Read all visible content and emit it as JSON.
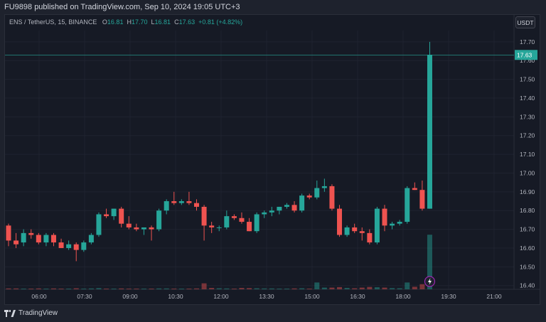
{
  "header": {
    "published": "FU9898 published on TradingView.com, Sep 10, 2024 19:05 UTC+3"
  },
  "legend": {
    "symbol": "ENS / TetherUS, 15, BINANCE",
    "o_label": "O",
    "o_val": "16.81",
    "h_label": "H",
    "h_val": "17.70",
    "l_label": "L",
    "l_val": "16.81",
    "c_label": "C",
    "c_val": "17.63",
    "change": "+0.81 (+4.82%)"
  },
  "currency_button": "USDT",
  "price_tag": "17.63",
  "footer": {
    "brand": "TradingView"
  },
  "colors": {
    "up": "#26a69a",
    "down": "#ef5350",
    "background": "#161a25",
    "text": "#b2b5be"
  },
  "chart_data": {
    "type": "candlestick",
    "y_ticks": [
      "17.70",
      "17.60",
      "17.50",
      "17.40",
      "17.30",
      "17.20",
      "17.10",
      "17.00",
      "16.90",
      "16.80",
      "16.70",
      "16.60",
      "16.50",
      "16.40"
    ],
    "x_ticks": [
      "06:00",
      "07:30",
      "09:00",
      "10:30",
      "12:00",
      "13:30",
      "15:00",
      "16:30",
      "18:00",
      "19:30",
      "21:00"
    ],
    "last_price": 17.63,
    "ylim": [
      16.38,
      17.76
    ],
    "candles": [
      [
        16.72,
        16.73,
        16.61,
        16.64
      ],
      [
        16.64,
        16.68,
        16.6,
        16.62
      ],
      [
        16.63,
        16.7,
        16.61,
        16.68
      ],
      [
        16.68,
        16.7,
        16.65,
        16.67
      ],
      [
        16.67,
        16.68,
        16.62,
        16.63
      ],
      [
        16.63,
        16.68,
        16.61,
        16.67
      ],
      [
        16.67,
        16.68,
        16.61,
        16.63
      ],
      [
        16.63,
        16.65,
        16.6,
        16.6
      ],
      [
        16.6,
        16.64,
        16.59,
        16.62
      ],
      [
        16.62,
        16.63,
        16.53,
        16.59
      ],
      [
        16.59,
        16.64,
        16.58,
        16.63
      ],
      [
        16.63,
        16.68,
        16.62,
        16.67
      ],
      [
        16.67,
        16.79,
        16.66,
        16.78
      ],
      [
        16.78,
        16.81,
        16.76,
        16.77
      ],
      [
        16.77,
        16.81,
        16.75,
        16.81
      ],
      [
        16.81,
        16.82,
        16.71,
        16.73
      ],
      [
        16.73,
        16.77,
        16.7,
        16.71
      ],
      [
        16.71,
        16.73,
        16.69,
        16.7
      ],
      [
        16.7,
        16.71,
        16.67,
        16.71
      ],
      [
        16.71,
        16.72,
        16.64,
        16.7
      ],
      [
        16.7,
        16.81,
        16.69,
        16.8
      ],
      [
        16.8,
        16.86,
        16.78,
        16.85
      ],
      [
        16.85,
        16.9,
        16.83,
        16.84
      ],
      [
        16.84,
        16.86,
        16.83,
        16.85
      ],
      [
        16.85,
        16.9,
        16.83,
        16.84
      ],
      [
        16.84,
        16.86,
        16.8,
        16.82
      ],
      [
        16.82,
        16.83,
        16.64,
        16.72
      ],
      [
        16.72,
        16.74,
        16.68,
        16.71
      ],
      [
        16.71,
        16.72,
        16.69,
        16.71
      ],
      [
        16.71,
        16.8,
        16.7,
        16.77
      ],
      [
        16.77,
        16.78,
        16.75,
        16.76
      ],
      [
        16.76,
        16.79,
        16.73,
        16.74
      ],
      [
        16.74,
        16.76,
        16.69,
        16.69
      ],
      [
        16.69,
        16.79,
        16.68,
        16.78
      ],
      [
        16.78,
        16.8,
        16.76,
        16.79
      ],
      [
        16.79,
        16.82,
        16.77,
        16.8
      ],
      [
        16.8,
        16.82,
        16.78,
        16.82
      ],
      [
        16.82,
        16.84,
        16.81,
        16.83
      ],
      [
        16.83,
        16.85,
        16.79,
        16.8
      ],
      [
        16.8,
        16.89,
        16.79,
        16.88
      ],
      [
        16.88,
        16.89,
        16.86,
        16.87
      ],
      [
        16.87,
        16.96,
        16.86,
        16.92
      ],
      [
        16.92,
        16.97,
        16.9,
        16.93
      ],
      [
        16.93,
        16.94,
        16.8,
        16.81
      ],
      [
        16.81,
        16.83,
        16.66,
        16.67
      ],
      [
        16.67,
        16.72,
        16.66,
        16.71
      ],
      [
        16.71,
        16.73,
        16.68,
        16.69
      ],
      [
        16.69,
        16.71,
        16.64,
        16.68
      ],
      [
        16.68,
        16.7,
        16.62,
        16.63
      ],
      [
        16.63,
        16.82,
        16.62,
        16.81
      ],
      [
        16.81,
        16.83,
        16.69,
        16.72
      ],
      [
        16.72,
        16.74,
        16.7,
        16.73
      ],
      [
        16.73,
        16.75,
        16.72,
        16.74
      ],
      [
        16.74,
        16.93,
        16.73,
        16.92
      ],
      [
        16.92,
        16.95,
        16.91,
        16.91
      ],
      [
        16.91,
        16.96,
        16.8,
        16.81
      ],
      [
        16.81,
        17.7,
        16.81,
        17.63
      ]
    ],
    "volumes": [
      0.05,
      0.05,
      0.04,
      0.04,
      0.05,
      0.04,
      0.05,
      0.04,
      0.04,
      0.06,
      0.04,
      0.05,
      0.07,
      0.04,
      0.04,
      0.05,
      0.04,
      0.04,
      0.04,
      0.04,
      0.05,
      0.05,
      0.04,
      0.04,
      0.04,
      0.05,
      0.35,
      0.08,
      0.06,
      0.05,
      0.04,
      0.08,
      0.07,
      0.06,
      0.05,
      0.05,
      0.04,
      0.04,
      0.05,
      0.06,
      0.04,
      0.4,
      0.1,
      0.1,
      0.13,
      0.08,
      0.06,
      0.1,
      0.14,
      0.12,
      0.1,
      0.07,
      0.06,
      0.4,
      0.15,
      0.3,
      3.2
    ]
  }
}
